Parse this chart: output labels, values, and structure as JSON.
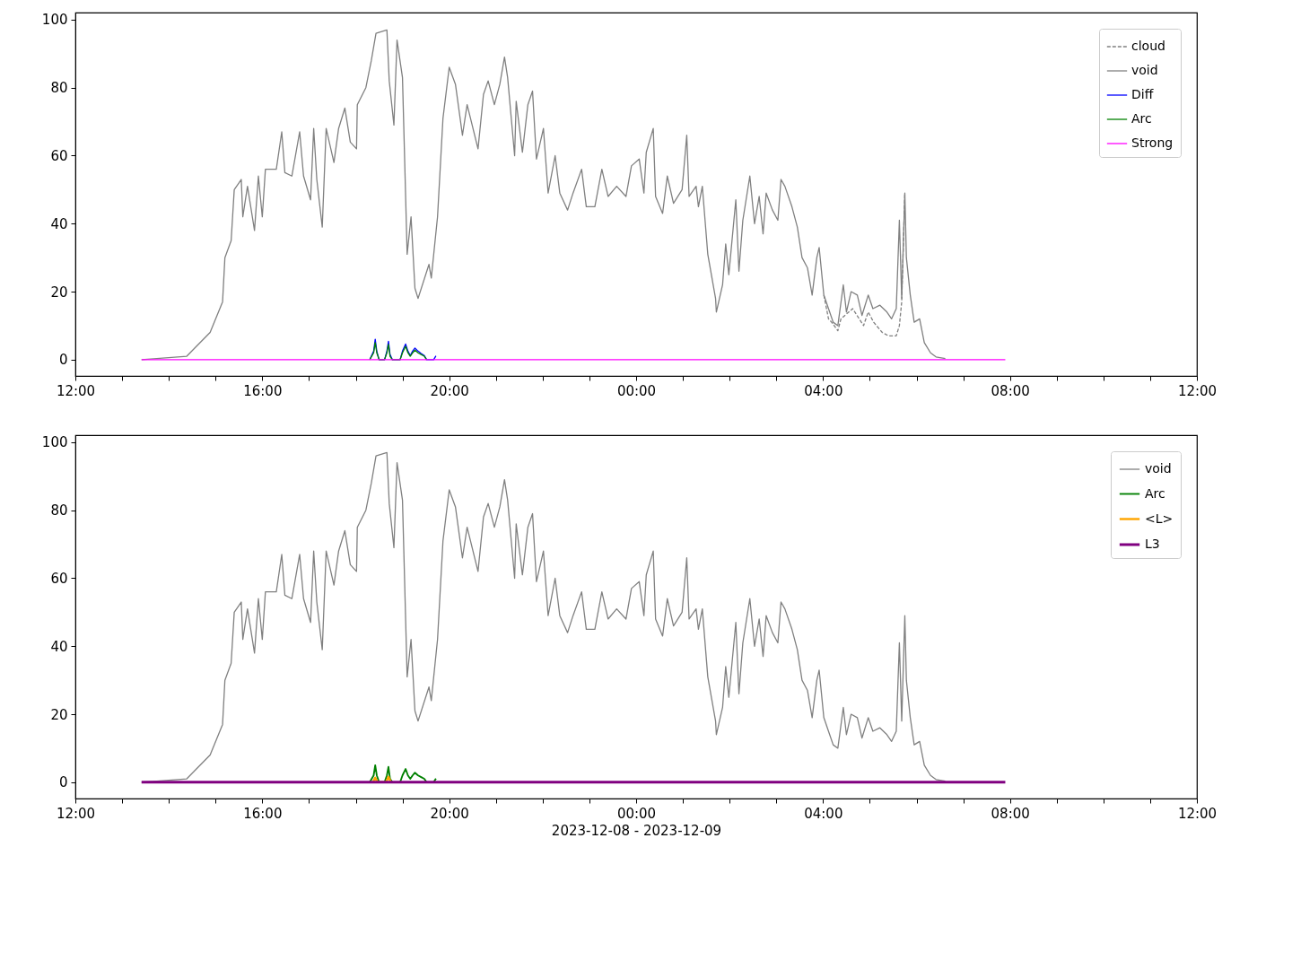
{
  "chart_data": [
    {
      "type": "line",
      "legend": "top right",
      "grid": false,
      "xlim": [
        "2023-12-08T12:00",
        "2023-12-09T12:00"
      ],
      "ylim": [
        -4.8,
        102.1
      ],
      "yticks": [
        0,
        20,
        40,
        60,
        80,
        100
      ],
      "xticks": [
        {
          "value": "2023-12-08T12:00",
          "label": "12:00"
        },
        {
          "value": "2023-12-08T13:00",
          "label": null
        },
        {
          "value": "2023-12-08T14:00",
          "label": null
        },
        {
          "value": "2023-12-08T15:00",
          "label": null
        },
        {
          "value": "2023-12-08T16:00",
          "label": "16:00"
        },
        {
          "value": "2023-12-08T17:00",
          "label": null
        },
        {
          "value": "2023-12-08T18:00",
          "label": null
        },
        {
          "value": "2023-12-08T19:00",
          "label": null
        },
        {
          "value": "2023-12-08T20:00",
          "label": "20:00"
        },
        {
          "value": "2023-12-08T21:00",
          "label": null
        },
        {
          "value": "2023-12-08T22:00",
          "label": null
        },
        {
          "value": "2023-12-08T23:00",
          "label": null
        },
        {
          "value": "2023-12-09T00:00",
          "label": "00:00"
        },
        {
          "value": "2023-12-09T01:00",
          "label": null
        },
        {
          "value": "2023-12-09T02:00",
          "label": null
        },
        {
          "value": "2023-12-09T03:00",
          "label": null
        },
        {
          "value": "2023-12-09T04:00",
          "label": "04:00"
        },
        {
          "value": "2023-12-09T05:00",
          "label": null
        },
        {
          "value": "2023-12-09T06:00",
          "label": null
        },
        {
          "value": "2023-12-09T07:00",
          "label": null
        },
        {
          "value": "2023-12-09T08:00",
          "label": "08:00"
        },
        {
          "value": "2023-12-09T09:00",
          "label": null
        },
        {
          "value": "2023-12-09T10:00",
          "label": null
        },
        {
          "value": "2023-12-09T11:00",
          "label": null
        },
        {
          "value": "2023-12-09T12:00",
          "label": "12:00"
        }
      ],
      "series": [
        {
          "name": "cloud",
          "color": "#808080",
          "line_style": "dashed",
          "x": [
            "2023-12-09T04:01",
            "2023-12-09T04:07",
            "2023-12-09T04:11",
            "2023-12-09T04:19",
            "2023-12-09T04:23",
            "2023-12-09T04:38",
            "2023-12-09T04:52",
            "2023-12-09T04:58",
            "2023-12-09T05:05",
            "2023-12-09T05:16",
            "2023-12-09T05:24",
            "2023-12-09T05:34",
            "2023-12-09T05:38",
            "2023-12-09T05:41",
            "2023-12-09T05:45"
          ],
          "values": [
            19,
            12,
            11,
            8.5,
            12,
            15,
            10,
            14,
            11,
            8,
            7,
            7,
            10,
            17,
            49
          ]
        },
        {
          "name": "void",
          "color": "#808080",
          "x": [
            "2023-12-08T13:25",
            "2023-12-08T14:23",
            "2023-12-08T14:53",
            "2023-12-08T15:09",
            "2023-12-08T15:12",
            "2023-12-08T15:20",
            "2023-12-08T15:24",
            "2023-12-08T15:33",
            "2023-12-08T15:35",
            "2023-12-08T15:41",
            "2023-12-08T15:50",
            "2023-12-08T15:55",
            "2023-12-08T16:00",
            "2023-12-08T16:04",
            "2023-12-08T16:18",
            "2023-12-08T16:25",
            "2023-12-08T16:29",
            "2023-12-08T16:38",
            "2023-12-08T16:48",
            "2023-12-08T16:53",
            "2023-12-08T17:02",
            "2023-12-08T17:06",
            "2023-12-08T17:10",
            "2023-12-08T17:17",
            "2023-12-08T17:22",
            "2023-12-08T17:32",
            "2023-12-08T17:38",
            "2023-12-08T17:46",
            "2023-12-08T17:53",
            "2023-12-08T18:01",
            "2023-12-08T18:02",
            "2023-12-08T18:13",
            "2023-12-08T18:20",
            "2023-12-08T18:26",
            "2023-12-08T18:40",
            "2023-12-08T18:43",
            "2023-12-08T18:49",
            "2023-12-08T18:53",
            "2023-12-08T19:00",
            "2023-12-08T19:06",
            "2023-12-08T19:11",
            "2023-12-08T19:16",
            "2023-12-08T19:20",
            "2023-12-08T19:34",
            "2023-12-08T19:37",
            "2023-12-08T19:45",
            "2023-12-08T19:52",
            "2023-12-08T20:00",
            "2023-12-08T20:08",
            "2023-12-08T20:17",
            "2023-12-08T20:23",
            "2023-12-08T20:37",
            "2023-12-08T20:44",
            "2023-12-08T20:50",
            "2023-12-08T20:58",
            "2023-12-08T21:05",
            "2023-12-08T21:11",
            "2023-12-08T21:15",
            "2023-12-08T21:24",
            "2023-12-08T21:26",
            "2023-12-08T21:34",
            "2023-12-08T21:41",
            "2023-12-08T21:47",
            "2023-12-08T21:52",
            "2023-12-08T22:01",
            "2023-12-08T22:07",
            "2023-12-08T22:16",
            "2023-12-08T22:22",
            "2023-12-08T22:32",
            "2023-12-08T22:39",
            "2023-12-08T22:50",
            "2023-12-08T22:56",
            "2023-12-08T23:07",
            "2023-12-08T23:16",
            "2023-12-08T23:24",
            "2023-12-08T23:35",
            "2023-12-08T23:47",
            "2023-12-08T23:54",
            "2023-12-09T00:04",
            "2023-12-09T00:10",
            "2023-12-09T00:13",
            "2023-12-09T00:22",
            "2023-12-09T00:25",
            "2023-12-09T00:34",
            "2023-12-09T00:40",
            "2023-12-09T00:48",
            "2023-12-09T00:59",
            "2023-12-09T01:05",
            "2023-12-09T01:08",
            "2023-12-09T01:17",
            "2023-12-09T01:20",
            "2023-12-09T01:25",
            "2023-12-09T01:32",
            "2023-12-09T01:42",
            "2023-12-09T01:43",
            "2023-12-09T01:51",
            "2023-12-09T01:55",
            "2023-12-09T01:59",
            "2023-12-09T02:08",
            "2023-12-09T02:12",
            "2023-12-09T02:17",
            "2023-12-09T02:26",
            "2023-12-09T02:32",
            "2023-12-09T02:38",
            "2023-12-09T02:43",
            "2023-12-09T02:47",
            "2023-12-09T02:55",
            "2023-12-09T03:02",
            "2023-12-09T03:06",
            "2023-12-09T03:11",
            "2023-12-09T03:20",
            "2023-12-09T03:27",
            "2023-12-09T03:33",
            "2023-12-09T03:40",
            "2023-12-09T03:46",
            "2023-12-09T03:52",
            "2023-12-09T03:55",
            "2023-12-09T04:01",
            "2023-12-09T04:07",
            "2023-12-09T04:13",
            "2023-12-09T04:19",
            "2023-12-09T04:26",
            "2023-12-09T04:30",
            "2023-12-09T04:36",
            "2023-12-09T04:44",
            "2023-12-09T04:50",
            "2023-12-09T04:58",
            "2023-12-09T05:04",
            "2023-12-09T05:13",
            "2023-12-09T05:22",
            "2023-12-09T05:28",
            "2023-12-09T05:34",
            "2023-12-09T05:38",
            "2023-12-09T05:41",
            "2023-12-09T05:45",
            "2023-12-09T05:47",
            "2023-12-09T05:52",
            "2023-12-09T05:57",
            "2023-12-09T06:04",
            "2023-12-09T06:10",
            "2023-12-09T06:18",
            "2023-12-09T06:25",
            "2023-12-09T06:37"
          ],
          "values": [
            0,
            1,
            8,
            17,
            30,
            35,
            50,
            53,
            42,
            51,
            38,
            54,
            42,
            56,
            56,
            67,
            55,
            54,
            67,
            54,
            47,
            68,
            53,
            39,
            68,
            58,
            68,
            74,
            64,
            62,
            75,
            80,
            88,
            96,
            97,
            82,
            69,
            94,
            83,
            31,
            42,
            21,
            18,
            28,
            24,
            42,
            71,
            86,
            81,
            66,
            75,
            62,
            78,
            82,
            75,
            81,
            89,
            83,
            60,
            76,
            61,
            75,
            79,
            59,
            68,
            49,
            60,
            49,
            44,
            49,
            56,
            45,
            45,
            56,
            48,
            51,
            48,
            57,
            59,
            49,
            61,
            68,
            48,
            43,
            54,
            46,
            50,
            66,
            48,
            51,
            45,
            51,
            31,
            18,
            14,
            22,
            34,
            25,
            47,
            26,
            41,
            54,
            40,
            48,
            37,
            49,
            44,
            41,
            53,
            51,
            45,
            39,
            30,
            27,
            19,
            30,
            33,
            19,
            15,
            11,
            10,
            22,
            14,
            20,
            19,
            13,
            19,
            15,
            16,
            14,
            12,
            15,
            41,
            18,
            49,
            30,
            19,
            11,
            12,
            5,
            2,
            0.8,
            0.3
          ]
        },
        {
          "name": "Diff",
          "color": "#0000ff",
          "x": [
            "2023-12-08T18:18",
            "2023-12-08T18:23",
            "2023-12-08T18:25",
            "2023-12-08T18:27",
            "2023-12-08T18:30",
            "2023-12-08T18:37",
            "2023-12-08T18:40",
            "2023-12-08T18:42",
            "2023-12-08T18:44",
            "2023-12-08T18:47",
            "2023-12-08T18:57",
            "2023-12-08T19:00",
            "2023-12-08T19:04",
            "2023-12-08T19:07",
            "2023-12-08T19:10",
            "2023-12-08T19:13",
            "2023-12-08T19:16",
            "2023-12-08T19:20",
            "2023-12-08T19:24",
            "2023-12-08T19:28",
            "2023-12-08T19:31",
            "2023-12-08T19:40",
            "2023-12-08T19:43"
          ],
          "values": [
            0,
            2.5,
            6,
            2.5,
            0,
            0,
            2.5,
            5.4,
            1.5,
            0,
            0,
            2.5,
            4.6,
            2.5,
            1.2,
            2.5,
            3.4,
            2.5,
            1.8,
            1.2,
            0,
            0,
            1.1
          ]
        },
        {
          "name": "Arc",
          "color": "#008000",
          "x": [
            "2023-12-08T18:18",
            "2023-12-08T18:23",
            "2023-12-08T18:25",
            "2023-12-08T18:27",
            "2023-12-08T18:30",
            "2023-12-08T18:37",
            "2023-12-08T18:40",
            "2023-12-08T18:42",
            "2023-12-08T18:44",
            "2023-12-08T18:47",
            "2023-12-08T18:57",
            "2023-12-08T19:00",
            "2023-12-08T19:04",
            "2023-12-08T19:07",
            "2023-12-08T19:10",
            "2023-12-08T19:13",
            "2023-12-08T19:16",
            "2023-12-08T19:20",
            "2023-12-08T19:24",
            "2023-12-08T19:28",
            "2023-12-08T19:31"
          ],
          "values": [
            0,
            2,
            5,
            2,
            0,
            0,
            2,
            4.5,
            1,
            0,
            0,
            2,
            3.9,
            2,
            1,
            2,
            2.8,
            2,
            1.5,
            1,
            0
          ]
        },
        {
          "name": "Strong",
          "color": "#ff00ff",
          "x": [
            "2023-12-08T13:25",
            "2023-12-09T07:54"
          ],
          "values": [
            0,
            0
          ]
        }
      ]
    },
    {
      "type": "line",
      "legend": "top right",
      "grid": false,
      "xlabel": "2023-12-08 - 2023-12-09",
      "xlim": [
        "2023-12-08T12:00",
        "2023-12-09T12:00"
      ],
      "ylim": [
        -4.8,
        102.1
      ],
      "yticks": [
        0,
        20,
        40,
        60,
        80,
        100
      ],
      "xticks": [
        {
          "value": "2023-12-08T12:00",
          "label": "12:00"
        },
        {
          "value": "2023-12-08T13:00",
          "label": null
        },
        {
          "value": "2023-12-08T14:00",
          "label": null
        },
        {
          "value": "2023-12-08T15:00",
          "label": null
        },
        {
          "value": "2023-12-08T16:00",
          "label": "16:00"
        },
        {
          "value": "2023-12-08T17:00",
          "label": null
        },
        {
          "value": "2023-12-08T18:00",
          "label": null
        },
        {
          "value": "2023-12-08T19:00",
          "label": null
        },
        {
          "value": "2023-12-08T20:00",
          "label": "20:00"
        },
        {
          "value": "2023-12-08T21:00",
          "label": null
        },
        {
          "value": "2023-12-08T22:00",
          "label": null
        },
        {
          "value": "2023-12-08T23:00",
          "label": null
        },
        {
          "value": "2023-12-09T00:00",
          "label": "00:00"
        },
        {
          "value": "2023-12-09T01:00",
          "label": null
        },
        {
          "value": "2023-12-09T02:00",
          "label": null
        },
        {
          "value": "2023-12-09T03:00",
          "label": null
        },
        {
          "value": "2023-12-09T04:00",
          "label": "04:00"
        },
        {
          "value": "2023-12-09T05:00",
          "label": null
        },
        {
          "value": "2023-12-09T06:00",
          "label": null
        },
        {
          "value": "2023-12-09T07:00",
          "label": null
        },
        {
          "value": "2023-12-09T08:00",
          "label": "08:00"
        },
        {
          "value": "2023-12-09T09:00",
          "label": null
        },
        {
          "value": "2023-12-09T10:00",
          "label": null
        },
        {
          "value": "2023-12-09T11:00",
          "label": null
        },
        {
          "value": "2023-12-09T12:00",
          "label": "12:00"
        }
      ],
      "series": [
        {
          "name": "void",
          "color": "#808080",
          "x": [
            "2023-12-08T13:25",
            "2023-12-08T14:23",
            "2023-12-08T14:53",
            "2023-12-08T15:09",
            "2023-12-08T15:12",
            "2023-12-08T15:20",
            "2023-12-08T15:24",
            "2023-12-08T15:33",
            "2023-12-08T15:35",
            "2023-12-08T15:41",
            "2023-12-08T15:50",
            "2023-12-08T15:55",
            "2023-12-08T16:00",
            "2023-12-08T16:04",
            "2023-12-08T16:18",
            "2023-12-08T16:25",
            "2023-12-08T16:29",
            "2023-12-08T16:38",
            "2023-12-08T16:48",
            "2023-12-08T16:53",
            "2023-12-08T17:02",
            "2023-12-08T17:06",
            "2023-12-08T17:10",
            "2023-12-08T17:17",
            "2023-12-08T17:22",
            "2023-12-08T17:32",
            "2023-12-08T17:38",
            "2023-12-08T17:46",
            "2023-12-08T17:53",
            "2023-12-08T18:01",
            "2023-12-08T18:02",
            "2023-12-08T18:13",
            "2023-12-08T18:20",
            "2023-12-08T18:26",
            "2023-12-08T18:40",
            "2023-12-08T18:43",
            "2023-12-08T18:49",
            "2023-12-08T18:53",
            "2023-12-08T19:00",
            "2023-12-08T19:06",
            "2023-12-08T19:11",
            "2023-12-08T19:16",
            "2023-12-08T19:20",
            "2023-12-08T19:34",
            "2023-12-08T19:37",
            "2023-12-08T19:45",
            "2023-12-08T19:52",
            "2023-12-08T20:00",
            "2023-12-08T20:08",
            "2023-12-08T20:17",
            "2023-12-08T20:23",
            "2023-12-08T20:37",
            "2023-12-08T20:44",
            "2023-12-08T20:50",
            "2023-12-08T20:58",
            "2023-12-08T21:05",
            "2023-12-08T21:11",
            "2023-12-08T21:15",
            "2023-12-08T21:24",
            "2023-12-08T21:26",
            "2023-12-08T21:34",
            "2023-12-08T21:41",
            "2023-12-08T21:47",
            "2023-12-08T21:52",
            "2023-12-08T22:01",
            "2023-12-08T22:07",
            "2023-12-08T22:16",
            "2023-12-08T22:22",
            "2023-12-08T22:32",
            "2023-12-08T22:39",
            "2023-12-08T22:50",
            "2023-12-08T22:56",
            "2023-12-08T23:07",
            "2023-12-08T23:16",
            "2023-12-08T23:24",
            "2023-12-08T23:35",
            "2023-12-08T23:47",
            "2023-12-08T23:54",
            "2023-12-09T00:04",
            "2023-12-09T00:10",
            "2023-12-09T00:13",
            "2023-12-09T00:22",
            "2023-12-09T00:25",
            "2023-12-09T00:34",
            "2023-12-09T00:40",
            "2023-12-09T00:48",
            "2023-12-09T00:59",
            "2023-12-09T01:05",
            "2023-12-09T01:08",
            "2023-12-09T01:17",
            "2023-12-09T01:20",
            "2023-12-09T01:25",
            "2023-12-09T01:32",
            "2023-12-09T01:42",
            "2023-12-09T01:43",
            "2023-12-09T01:51",
            "2023-12-09T01:55",
            "2023-12-09T01:59",
            "2023-12-09T02:08",
            "2023-12-09T02:12",
            "2023-12-09T02:17",
            "2023-12-09T02:26",
            "2023-12-09T02:32",
            "2023-12-09T02:38",
            "2023-12-09T02:43",
            "2023-12-09T02:47",
            "2023-12-09T02:55",
            "2023-12-09T03:02",
            "2023-12-09T03:06",
            "2023-12-09T03:11",
            "2023-12-09T03:20",
            "2023-12-09T03:27",
            "2023-12-09T03:33",
            "2023-12-09T03:40",
            "2023-12-09T03:46",
            "2023-12-09T03:52",
            "2023-12-09T03:55",
            "2023-12-09T04:01",
            "2023-12-09T04:07",
            "2023-12-09T04:13",
            "2023-12-09T04:19",
            "2023-12-09T04:26",
            "2023-12-09T04:30",
            "2023-12-09T04:36",
            "2023-12-09T04:44",
            "2023-12-09T04:50",
            "2023-12-09T04:58",
            "2023-12-09T05:04",
            "2023-12-09T05:13",
            "2023-12-09T05:22",
            "2023-12-09T05:28",
            "2023-12-09T05:34",
            "2023-12-09T05:38",
            "2023-12-09T05:41",
            "2023-12-09T05:45",
            "2023-12-09T05:47",
            "2023-12-09T05:52",
            "2023-12-09T05:57",
            "2023-12-09T06:04",
            "2023-12-09T06:10",
            "2023-12-09T06:18",
            "2023-12-09T06:25",
            "2023-12-09T06:37"
          ],
          "values": [
            0,
            1,
            8,
            17,
            30,
            35,
            50,
            53,
            42,
            51,
            38,
            54,
            42,
            56,
            56,
            67,
            55,
            54,
            67,
            54,
            47,
            68,
            53,
            39,
            68,
            58,
            68,
            74,
            64,
            62,
            75,
            80,
            88,
            96,
            97,
            82,
            69,
            94,
            83,
            31,
            42,
            21,
            18,
            28,
            24,
            42,
            71,
            86,
            81,
            66,
            75,
            62,
            78,
            82,
            75,
            81,
            89,
            83,
            60,
            76,
            61,
            75,
            79,
            59,
            68,
            49,
            60,
            49,
            44,
            49,
            56,
            45,
            45,
            56,
            48,
            51,
            48,
            57,
            59,
            49,
            61,
            68,
            48,
            43,
            54,
            46,
            50,
            66,
            48,
            51,
            45,
            51,
            31,
            18,
            14,
            22,
            34,
            25,
            47,
            26,
            41,
            54,
            40,
            48,
            37,
            49,
            44,
            41,
            53,
            51,
            45,
            39,
            30,
            27,
            19,
            30,
            33,
            19,
            15,
            11,
            10,
            22,
            14,
            20,
            19,
            13,
            19,
            15,
            16,
            14,
            12,
            15,
            41,
            18,
            49,
            30,
            19,
            11,
            12,
            5,
            2,
            0.8,
            0.3
          ]
        },
        {
          "name": "Arc",
          "color": "#008000",
          "x": [
            "2023-12-08T18:18",
            "2023-12-08T18:23",
            "2023-12-08T18:25",
            "2023-12-08T18:27",
            "2023-12-08T18:30",
            "2023-12-08T18:37",
            "2023-12-08T18:40",
            "2023-12-08T18:42",
            "2023-12-08T18:44",
            "2023-12-08T18:47",
            "2023-12-08T18:57",
            "2023-12-08T19:00",
            "2023-12-08T19:04",
            "2023-12-08T19:07",
            "2023-12-08T19:10",
            "2023-12-08T19:13",
            "2023-12-08T19:16",
            "2023-12-08T19:20",
            "2023-12-08T19:24",
            "2023-12-08T19:28",
            "2023-12-08T19:31",
            "2023-12-08T19:40",
            "2023-12-08T19:43"
          ],
          "values": [
            0,
            2,
            5,
            2,
            0,
            0,
            2,
            4.5,
            1,
            0,
            0,
            2,
            3.9,
            2,
            1,
            2,
            2.8,
            2,
            1.5,
            1,
            0,
            0,
            1.1
          ]
        },
        {
          "name": "<L>",
          "color": "#ffa500",
          "x": [
            "2023-12-08T18:22",
            "2023-12-08T18:25",
            "2023-12-08T18:28",
            "2023-12-08T18:39",
            "2023-12-08T18:42",
            "2023-12-08T18:45"
          ],
          "values": [
            0,
            1.3,
            0,
            0,
            1.6,
            0
          ]
        },
        {
          "name": "L3",
          "color": "#800080",
          "x": [
            "2023-12-08T13:25",
            "2023-12-09T07:54"
          ],
          "values": [
            0,
            0
          ]
        }
      ]
    }
  ]
}
